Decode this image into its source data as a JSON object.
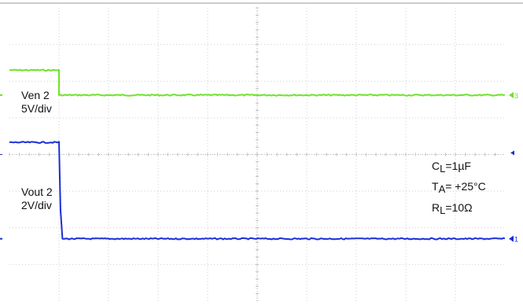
{
  "chart_data": {
    "type": "line",
    "title": "",
    "xlabel": "",
    "ylabel": "",
    "grid": true,
    "grid_divisions": {
      "x": 10,
      "y": 8
    },
    "x_unit": "div",
    "xlim": [
      0,
      10
    ],
    "series": [
      {
        "name": "Ven 2",
        "color": "#6fe22a",
        "points": [
          [
            0,
            6.3
          ],
          [
            1.0,
            6.3
          ],
          [
            1.0,
            5.62
          ],
          [
            10,
            5.62
          ]
        ],
        "label_lines": [
          "Ven 2",
          "5V/div"
        ]
      },
      {
        "name": "Vout 2",
        "color": "#1a2fd6",
        "points": [
          [
            0,
            4.33
          ],
          [
            1.0,
            4.33
          ],
          [
            1.03,
            2.5
          ],
          [
            1.07,
            1.7
          ],
          [
            10,
            1.7
          ]
        ],
        "label_lines": [
          "Vout 2",
          "2V/div"
        ]
      }
    ],
    "annotations": [
      {
        "sym": "C",
        "sub": "L",
        "text": "=1µF"
      },
      {
        "sym": "T",
        "sub": "A",
        "text": "= +25°C"
      },
      {
        "sym": "R",
        "sub": "L",
        "text": "=10Ω"
      }
    ],
    "markers": [
      {
        "label": "3",
        "color": "#6fe22a"
      },
      {
        "label": "1",
        "color": "#1a2fd6"
      }
    ]
  }
}
